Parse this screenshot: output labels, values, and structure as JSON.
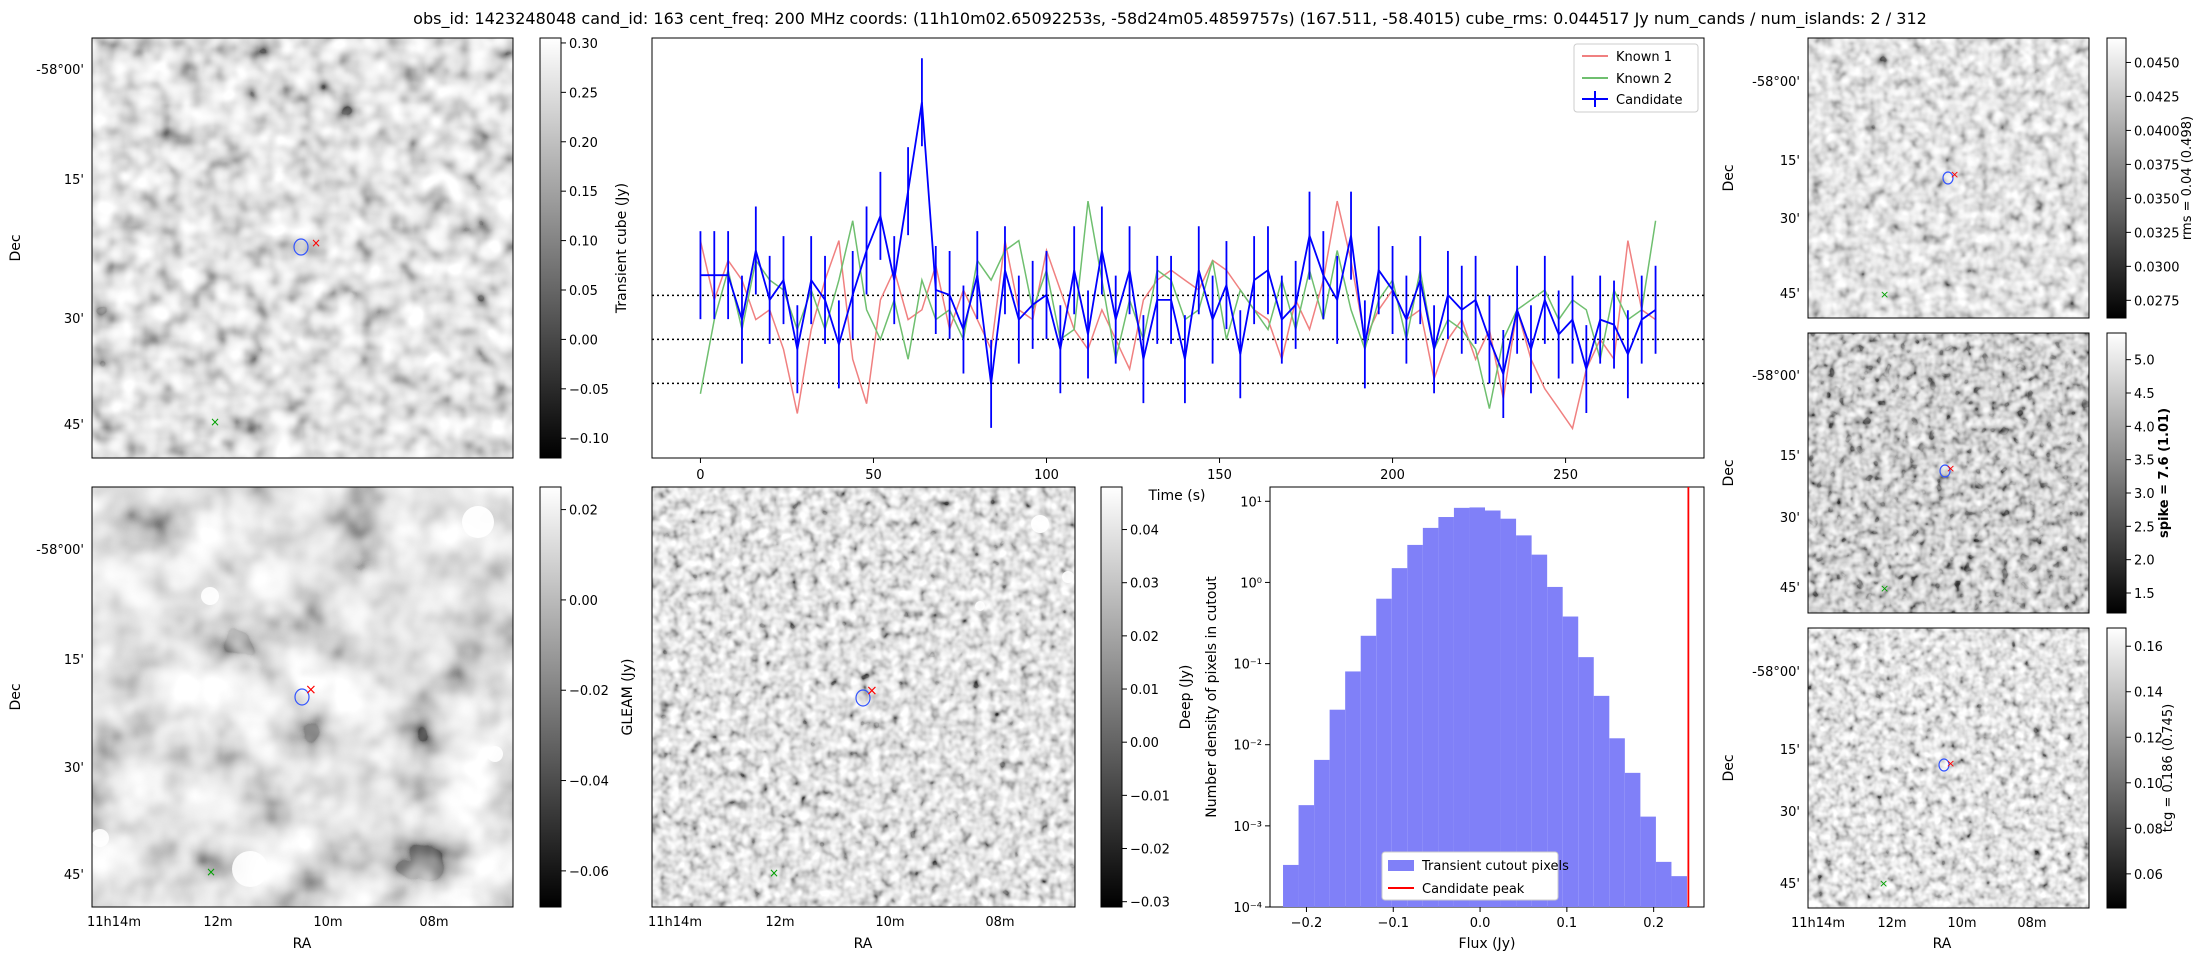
{
  "title": "obs_id: 1423248048 cand_id: 163 cent_freq: 200 MHz coords: (11h10m02.65092253s, -58d24m05.4859757s) (167.511, -58.4015) cube_rms: 0.044517 Jy num_cands / num_islands: 2 / 312",
  "image_axes": {
    "ra_label": "RA",
    "dec_label": "Dec",
    "ra_ticks": [
      "11h14m",
      "12m",
      "10m",
      "08m"
    ],
    "dec_ticks": [
      "-58°00'",
      "15'",
      "30'",
      "45'"
    ]
  },
  "chart_data": [
    {
      "type": "line",
      "name": "lightcurve",
      "xlabel": "Time (s)",
      "ylabel": "Transient cube (Jy)",
      "xlim": [
        -14,
        290
      ],
      "ylim": [
        -0.12,
        0.305
      ],
      "xticks": [
        0,
        50,
        100,
        150,
        200,
        250
      ],
      "hlines": [
        0.044517,
        0,
        -0.044517
      ],
      "series": [
        {
          "name": "Known 1",
          "color": "#f08080",
          "x": [
            0,
            4,
            8,
            12,
            16,
            20,
            24,
            28,
            32,
            36,
            40,
            44,
            48,
            52,
            56,
            60,
            64,
            68,
            72,
            76,
            80,
            84,
            88,
            92,
            96,
            100,
            104,
            108,
            112,
            116,
            120,
            124,
            128,
            132,
            136,
            140,
            144,
            148,
            152,
            156,
            160,
            164,
            168,
            172,
            176,
            180,
            184,
            188,
            192,
            196,
            200,
            204,
            208,
            212,
            216,
            220,
            224,
            228,
            232,
            236,
            240,
            244,
            248,
            252,
            256,
            260,
            264,
            268,
            272,
            276
          ],
          "y": [
            0.1,
            0.04,
            0.08,
            0.06,
            0.02,
            0.03,
            -0.01,
            -0.075,
            0.01,
            0.06,
            0.1,
            -0.02,
            -0.065,
            0.04,
            0.07,
            0.02,
            0.03,
            0.075,
            0.01,
            0.05,
            0.02,
            -0.01,
            0.1,
            0.03,
            0.02,
            0.09,
            0.05,
            0.01,
            -0.01,
            0.03,
            0.0,
            -0.03,
            0.04,
            0.06,
            0.07,
            0.06,
            0.05,
            0.08,
            0.07,
            0.05,
            0.03,
            0.02,
            -0.02,
            0.04,
            0.01,
            0.06,
            0.14,
            0.08,
            0.0,
            0.03,
            0.05,
            0.02,
            0.03,
            -0.04,
            0.0,
            0.02,
            -0.02,
            0.01,
            -0.06,
            0.03,
            -0.02,
            -0.05,
            -0.07,
            -0.09,
            -0.03,
            0.0,
            -0.02,
            0.1,
            0.03,
            0.02
          ]
        },
        {
          "name": "Known 2",
          "color": "#6fbf6f",
          "x": [
            0,
            4,
            8,
            12,
            16,
            20,
            24,
            28,
            32,
            36,
            40,
            44,
            48,
            52,
            56,
            60,
            64,
            68,
            72,
            76,
            80,
            84,
            88,
            92,
            96,
            100,
            104,
            108,
            112,
            116,
            120,
            124,
            128,
            132,
            136,
            140,
            144,
            148,
            152,
            156,
            160,
            164,
            168,
            172,
            176,
            180,
            184,
            188,
            192,
            196,
            200,
            204,
            208,
            212,
            216,
            220,
            224,
            228,
            232,
            236,
            240,
            244,
            248,
            252,
            256,
            260,
            264,
            268,
            272,
            276
          ],
          "y": [
            -0.055,
            0.02,
            0.07,
            0.01,
            0.08,
            0.06,
            0.05,
            0.01,
            0.05,
            0.01,
            0.06,
            0.12,
            0.03,
            0.0,
            0.04,
            -0.02,
            0.06,
            0.02,
            0.03,
            0.0,
            0.08,
            0.06,
            0.09,
            0.1,
            0.03,
            0.07,
            0.0,
            0.01,
            0.14,
            0.06,
            -0.02,
            0.04,
            0.0,
            0.07,
            0.06,
            0.02,
            0.03,
            0.08,
            0.0,
            0.05,
            0.03,
            0.01,
            0.06,
            0.01,
            0.07,
            0.02,
            0.09,
            0.03,
            -0.01,
            0.04,
            0.06,
            0.0,
            0.07,
            -0.01,
            0.02,
            0.01,
            -0.01,
            -0.07,
            0.0,
            0.03,
            0.04,
            0.05,
            0.02,
            0.04,
            0.03,
            -0.02,
            0.05,
            0.02,
            0.03,
            0.12
          ]
        },
        {
          "name": "Candidate",
          "color": "#0000ff",
          "x": [
            0,
            4,
            8,
            12,
            16,
            20,
            24,
            28,
            32,
            36,
            40,
            44,
            48,
            52,
            56,
            60,
            64,
            68,
            72,
            76,
            80,
            84,
            88,
            92,
            96,
            100,
            104,
            108,
            112,
            116,
            120,
            124,
            128,
            132,
            136,
            140,
            144,
            148,
            152,
            156,
            160,
            164,
            168,
            172,
            176,
            180,
            184,
            188,
            192,
            196,
            200,
            204,
            208,
            212,
            216,
            220,
            224,
            228,
            232,
            236,
            240,
            244,
            248,
            252,
            256,
            260,
            264,
            268,
            272,
            276
          ],
          "y": [
            0.065,
            0.065,
            0.065,
            0.02,
            0.09,
            0.04,
            0.06,
            -0.01,
            0.06,
            0.04,
            -0.005,
            0.045,
            0.09,
            0.125,
            0.06,
            0.15,
            0.24,
            0.05,
            0.045,
            0.01,
            0.065,
            -0.045,
            0.07,
            0.02,
            0.035,
            0.045,
            -0.01,
            0.07,
            0.005,
            0.09,
            0.02,
            0.07,
            -0.02,
            0.04,
            0.04,
            -0.02,
            0.07,
            0.02,
            0.055,
            -0.015,
            0.06,
            0.07,
            0.02,
            0.035,
            0.105,
            0.065,
            0.04,
            0.105,
            -0.005,
            0.07,
            0.05,
            0.02,
            0.06,
            -0.01,
            0.045,
            0.03,
            0.04,
            0.0,
            -0.035,
            0.03,
            -0.01,
            0.04,
            0.005,
            0.02,
            -0.03,
            0.02,
            0.015,
            -0.015,
            0.02,
            0.03
          ],
          "err": 0.044517
        }
      ]
    },
    {
      "type": "bar",
      "name": "histogram",
      "xlabel": "Flux (Jy)",
      "ylabel": "Number density of pixels in cutout",
      "yscale": "log",
      "xlim": [
        -0.242,
        0.258
      ],
      "ylim": [
        0.0001,
        15
      ],
      "xticks": [
        -0.2,
        -0.1,
        0.0,
        0.1,
        0.2
      ],
      "xtick_labels": [
        "−0.2",
        "−0.1",
        "0.0",
        "0.1",
        "0.2"
      ],
      "yticks": [
        0.0001,
        0.001,
        0.01,
        0.1,
        1,
        10
      ],
      "ytick_labels": [
        "10⁻⁴",
        "10⁻³",
        "10⁻²",
        "10⁻¹",
        "10⁰",
        "10¹"
      ],
      "bin_edges": [
        -0.227,
        -0.2091,
        -0.1912,
        -0.1733,
        -0.1554,
        -0.1375,
        -0.1196,
        -0.1017,
        -0.0838,
        -0.0659,
        -0.048,
        -0.0301,
        -0.0122,
        0.0057,
        0.0236,
        0.0415,
        0.0594,
        0.0773,
        0.0952,
        0.1131,
        0.131,
        0.1489,
        0.1668,
        0.1847,
        0.2026,
        0.2205,
        0.2384
      ],
      "values": [
        0.00033,
        0.0018,
        0.0065,
        0.027,
        0.08,
        0.22,
        0.63,
        1.5,
        2.9,
        4.7,
        6.4,
        8.3,
        8.4,
        7.7,
        6.1,
        3.8,
        2.2,
        0.88,
        0.38,
        0.12,
        0.04,
        0.012,
        0.0045,
        0.0013,
        0.00036,
        0.00024
      ],
      "candidate_peak": 0.24,
      "legend": [
        "Transient cutout pixels",
        "Candidate peak"
      ],
      "colors": {
        "bars": "#8080f8",
        "peak": "#ff0000"
      }
    }
  ],
  "colorbars": [
    {
      "name": "cube",
      "ticks": [
        -0.1,
        -0.05,
        0.0,
        0.05,
        0.1,
        0.15,
        0.2,
        0.25,
        0.3
      ],
      "tick_labels": [
        "−0.10",
        "−0.05",
        "0.00",
        "0.05",
        "0.10",
        "0.15",
        "0.20",
        "0.25",
        "0.30"
      ],
      "range": [
        -0.12,
        0.305
      ],
      "label": ""
    },
    {
      "name": "gleam",
      "ticks": [
        -0.06,
        -0.04,
        -0.02,
        0.0,
        0.02
      ],
      "tick_labels": [
        "−0.06",
        "−0.04",
        "−0.02",
        "0.00",
        "0.02"
      ],
      "range": [
        -0.068,
        0.025
      ],
      "label": "GLEAM (Jy)"
    },
    {
      "name": "deep",
      "ticks": [
        -0.03,
        -0.02,
        -0.01,
        0.0,
        0.01,
        0.02,
        0.03,
        0.04
      ],
      "tick_labels": [
        "−0.03",
        "−0.02",
        "−0.01",
        "0.00",
        "0.01",
        "0.02",
        "0.03",
        "0.04"
      ],
      "range": [
        -0.031,
        0.048
      ],
      "label": "Deep (Jy)"
    },
    {
      "name": "rms",
      "ticks": [
        0.0275,
        0.03,
        0.0325,
        0.035,
        0.0375,
        0.04,
        0.0425,
        0.045
      ],
      "tick_labels": [
        "0.0275",
        "0.0300",
        "0.0325",
        "0.0350",
        "0.0375",
        "0.0400",
        "0.0425",
        "0.0450"
      ],
      "range": [
        0.0262,
        0.0468
      ],
      "label": "rms = 0.04 (0.498)"
    },
    {
      "name": "spike",
      "ticks": [
        1.5,
        2.0,
        2.5,
        3.0,
        3.5,
        4.0,
        4.5,
        5.0
      ],
      "tick_labels": [
        "1.5",
        "2.0",
        "2.5",
        "3.0",
        "3.5",
        "4.0",
        "4.5",
        "5.0"
      ],
      "range": [
        1.2,
        5.4
      ],
      "label": "spike = 7.6 (1.01)"
    },
    {
      "name": "tcg",
      "ticks": [
        0.06,
        0.08,
        0.1,
        0.12,
        0.14,
        0.16
      ],
      "tick_labels": [
        "0.06",
        "0.08",
        "0.10",
        "0.12",
        "0.14",
        "0.16"
      ],
      "range": [
        0.045,
        0.168
      ],
      "label": "tcg = 0.186 (0.745)"
    }
  ]
}
